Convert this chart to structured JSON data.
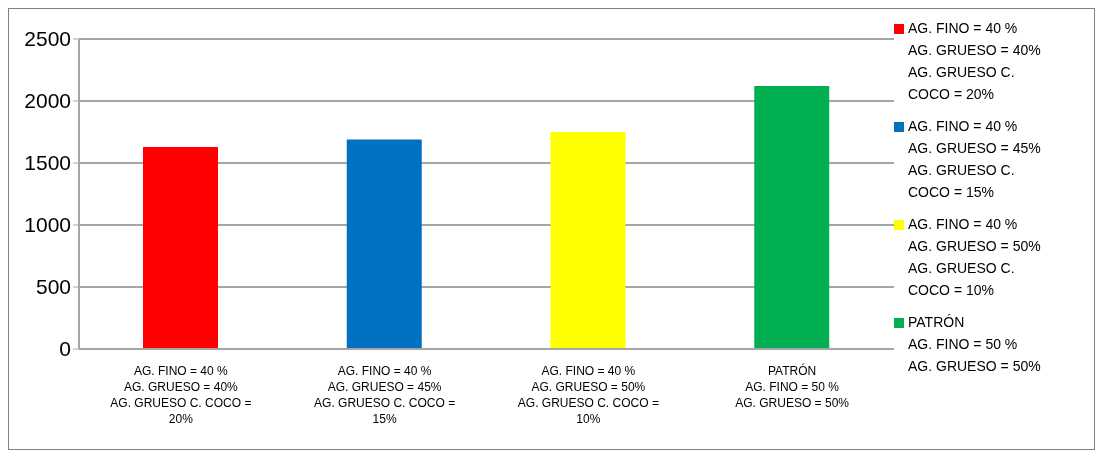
{
  "chart_data": {
    "type": "bar",
    "categories": [
      "AG. FINO = 40 %\nAG. GRUESO = 40%\nAG. GRUESO C. COCO = 20%",
      "AG. FINO = 40 %\nAG. GRUESO = 45%\nAG. GRUESO C. COCO = 15%",
      "AG. FINO = 40 %\nAG. GRUESO = 50%\nAG. GRUESO C. COCO = 10%",
      "PATRÓN\nAG. FINO = 50 %\nAG. GRUESO = 50%"
    ],
    "series": [
      {
        "name": "AG. FINO = 40 %\nAG. GRUESO = 40%\nAG. GRUESO C. COCO = 20%",
        "color": "#ff0000",
        "values": [
          1630,
          null,
          null,
          null
        ]
      },
      {
        "name": "AG. FINO = 40 %\nAG. GRUESO = 45%\nAG. GRUESO C. COCO = 15%",
        "color": "#0070c0",
        "values": [
          null,
          1690,
          null,
          null
        ]
      },
      {
        "name": "AG. FINO = 40 %\nAG. GRUESO = 50%\nAG. GRUESO C. COCO = 10%",
        "color": "#ffff00",
        "values": [
          null,
          null,
          1750,
          null
        ]
      },
      {
        "name": "PATRÓN\nAG. FINO = 50 %\nAG. GRUESO = 50%",
        "color": "#00b050",
        "values": [
          null,
          null,
          null,
          2120
        ]
      }
    ],
    "stacked": true,
    "ylim": [
      0,
      2500
    ],
    "yticks": [
      0,
      500,
      1000,
      1500,
      2000,
      2500
    ],
    "grid": "y",
    "legend": "right"
  }
}
